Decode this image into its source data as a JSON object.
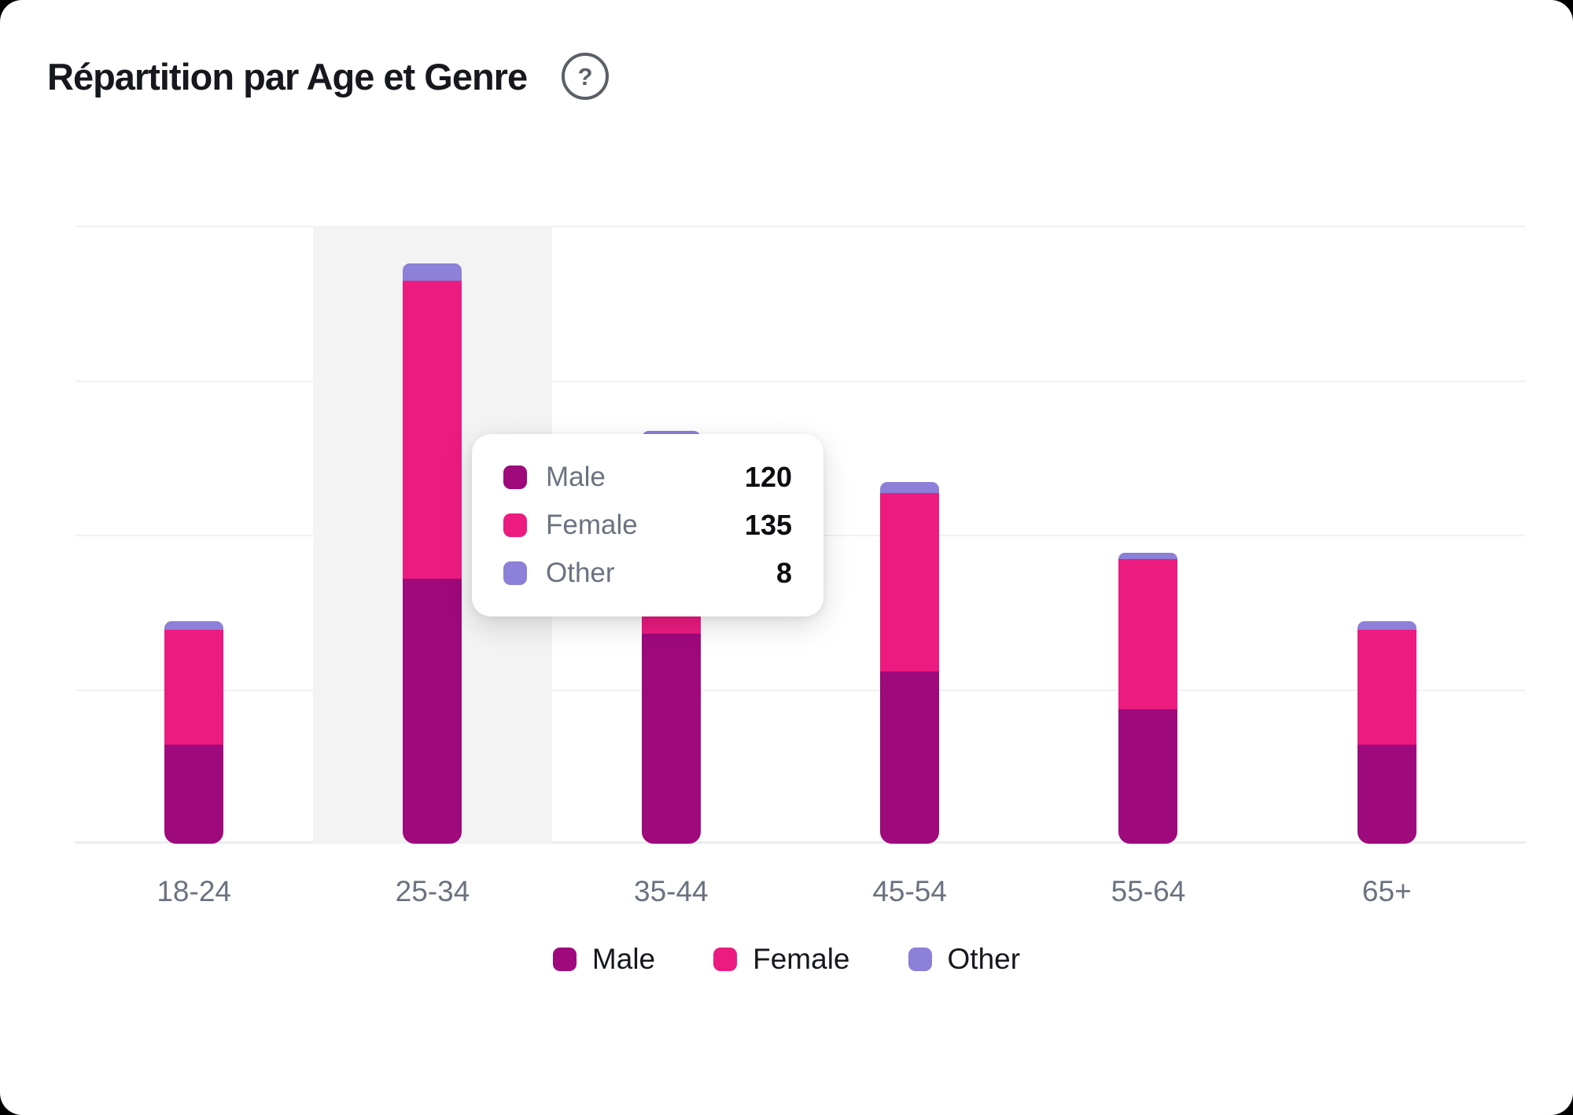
{
  "card": {
    "title": "Répartition par Age et Genre",
    "help_icon": {
      "name": "circle-question-icon",
      "glyph": "?"
    }
  },
  "chart_data": {
    "type": "bar",
    "stacked": true,
    "title": "Répartition par Age et Genre",
    "categories": [
      "18-24",
      "25-34",
      "35-44",
      "45-54",
      "55-64",
      "65+"
    ],
    "series": [
      {
        "name": "Male",
        "color": "#9E097C",
        "values": [
          45,
          120,
          95,
          78,
          61,
          45
        ]
      },
      {
        "name": "Female",
        "color": "#EC1B80",
        "values": [
          52,
          135,
          85,
          81,
          68,
          52
        ]
      },
      {
        "name": "Other",
        "color": "#8C80D8",
        "values": [
          4,
          8,
          7,
          5,
          3,
          4
        ]
      }
    ],
    "ylim": [
      0,
      280
    ],
    "gridlines": [
      0,
      70,
      140,
      210,
      280
    ],
    "y_axis_tick_labels_visible": false,
    "grid": "horizontal",
    "legend_position": "bottom",
    "highlighted_category": "25-34"
  },
  "tooltip": {
    "rows": [
      {
        "label": "Male",
        "value": "120",
        "color": "#9E097C"
      },
      {
        "label": "Female",
        "value": "135",
        "color": "#EC1B80"
      },
      {
        "label": "Other",
        "value": "8",
        "color": "#8C80D8"
      }
    ]
  },
  "legend": {
    "items": [
      {
        "label": "Male",
        "color": "#9E097C"
      },
      {
        "label": "Female",
        "color": "#EC1B80"
      },
      {
        "label": "Other",
        "color": "#8C80D8"
      }
    ]
  }
}
